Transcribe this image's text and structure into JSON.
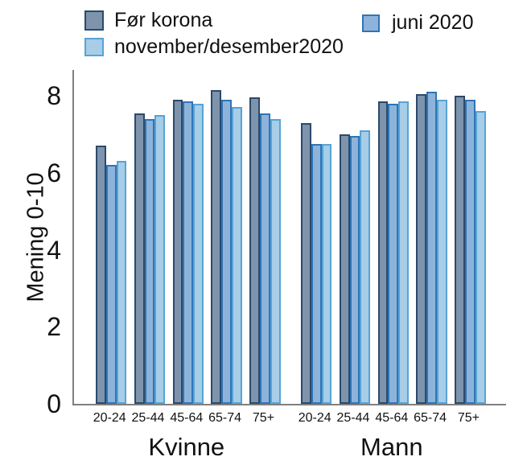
{
  "legend": {
    "items": [
      {
        "label": "Før korona"
      },
      {
        "label": "juni 2020"
      },
      {
        "label": "november/desember2020"
      }
    ]
  },
  "chart_data": {
    "type": "bar",
    "title": "",
    "xlabel": "",
    "ylabel": "Mening 0-10",
    "yticks": [
      0,
      2,
      4,
      6,
      8
    ],
    "ylim": [
      0,
      8.67
    ],
    "grid": false,
    "legend_position": "top",
    "axis_color": "#7f7f7f",
    "clusters": [
      "Kvinne",
      "Mann"
    ],
    "categories": [
      "20-24",
      "25-44",
      "45-64",
      "65-74",
      "75+"
    ],
    "series": [
      {
        "name": "Før korona",
        "fill": "#7E93AC",
        "border": "#2B4A6B",
        "values": {
          "Kvinne": [
            6.7,
            7.55,
            7.9,
            8.15,
            7.95
          ],
          "Mann": [
            7.3,
            7.0,
            7.85,
            8.05,
            8.0
          ]
        }
      },
      {
        "name": "juni 2020",
        "fill": "#8EB3DA",
        "border": "#2E75B6",
        "values": {
          "Kvinne": [
            6.2,
            7.4,
            7.85,
            7.9,
            7.55
          ],
          "Mann": [
            6.75,
            6.95,
            7.8,
            8.1,
            7.9
          ]
        }
      },
      {
        "name": "november/desember2020",
        "fill": "#A7CDE7",
        "border": "#57A3D6",
        "values": {
          "Kvinne": [
            6.3,
            7.5,
            7.8,
            7.7,
            7.4
          ],
          "Mann": [
            6.75,
            7.1,
            7.85,
            7.9,
            7.6
          ]
        }
      }
    ]
  }
}
